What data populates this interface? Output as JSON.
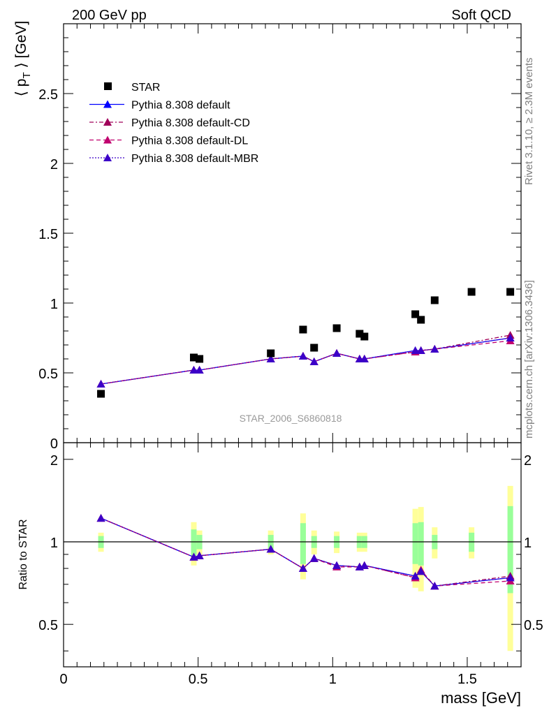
{
  "header": {
    "left": "200 GeV pp",
    "right": "Soft QCD"
  },
  "side_text": {
    "rivet": "Rivet 3.1.10, ≥ 2.3M events",
    "mcplots": "mcplots.cern.ch [arXiv:1306.3436]"
  },
  "watermark": "STAR_2006_S6860818",
  "colors": {
    "star": "#000000",
    "default": "#0000ff",
    "default_cd": "#a0005a",
    "default_dl": "#c0006e",
    "default_mbr": "#3c00c8",
    "band_inner": "#99ff99",
    "band_outer": "#ffff99"
  },
  "chart_data": [
    {
      "type": "scatter",
      "xlabel": "",
      "ylabel": "⟨ p_T ⟩ [GeV]",
      "xlim": [
        0,
        1.7
      ],
      "ylim": [
        0,
        3.0
      ],
      "yticks": [
        "0",
        "0.5",
        "1",
        "1.5",
        "2",
        "2.5"
      ],
      "legend": {
        "placement": "top-left",
        "entries": [
          "STAR",
          "Pythia 8.308 default",
          "Pythia 8.308 default-CD",
          "Pythia 8.308 default-DL",
          "Pythia 8.308 default-MBR"
        ]
      },
      "x": [
        0.139,
        0.484,
        0.505,
        0.77,
        0.89,
        0.931,
        1.015,
        1.1,
        1.118,
        1.307,
        1.328,
        1.379,
        1.516,
        1.66
      ],
      "series": [
        {
          "name": "STAR",
          "style": "square",
          "values": [
            0.35,
            0.61,
            0.6,
            0.64,
            0.81,
            0.68,
            0.82,
            0.78,
            0.76,
            0.92,
            0.88,
            1.02,
            1.08,
            1.08
          ]
        },
        {
          "name": "Pythia 8.308 default",
          "style": "solid",
          "values": [
            0.42,
            0.52,
            0.52,
            0.6,
            0.62,
            0.58,
            0.64,
            0.6,
            0.6,
            0.66,
            0.66,
            0.67,
            null,
            0.75
          ]
        },
        {
          "name": "Pythia 8.308 default-CD",
          "style": "dashdot",
          "values": [
            0.42,
            0.52,
            0.52,
            0.6,
            0.62,
            0.58,
            0.64,
            0.6,
            0.6,
            0.65,
            0.66,
            0.67,
            null,
            0.77
          ]
        },
        {
          "name": "Pythia 8.308 default-DL",
          "style": "dashed",
          "values": [
            0.42,
            0.52,
            0.52,
            0.6,
            0.62,
            0.58,
            0.64,
            0.6,
            0.6,
            0.65,
            0.66,
            0.67,
            null,
            0.73
          ]
        },
        {
          "name": "Pythia 8.308 default-MBR",
          "style": "dotted",
          "values": [
            0.42,
            0.52,
            0.52,
            0.6,
            0.62,
            0.58,
            0.64,
            0.6,
            0.6,
            0.66,
            0.66,
            0.67,
            null,
            0.75
          ]
        }
      ]
    },
    {
      "type": "line",
      "xlabel": "mass [GeV]",
      "ylabel": "Ratio to STAR",
      "xlim": [
        0,
        1.7
      ],
      "ylim": [
        0.35,
        2.3
      ],
      "log_y": true,
      "xticks": [
        "0",
        "0.5",
        "1",
        "1.5"
      ],
      "yticks": [
        "0.5",
        "1",
        "2"
      ],
      "reference_line": 1,
      "x": [
        0.139,
        0.484,
        0.505,
        0.77,
        0.89,
        0.931,
        1.015,
        1.1,
        1.118,
        1.307,
        1.328,
        1.379,
        1.516,
        1.66
      ],
      "bands": {
        "inner_halfwidth": [
          0.05,
          0.11,
          0.06,
          0.06,
          0.17,
          0.05,
          0.05,
          0.05,
          0.05,
          0.17,
          0.18,
          0.06,
          0.08,
          0.35
        ],
        "outer_halfwidth": [
          0.08,
          0.18,
          0.1,
          0.1,
          0.27,
          0.1,
          0.09,
          0.08,
          0.08,
          0.32,
          0.34,
          0.13,
          0.13,
          0.6
        ]
      },
      "series": [
        {
          "name": "Pythia 8.308 default",
          "values": [
            1.22,
            0.88,
            0.89,
            0.94,
            0.8,
            0.87,
            0.82,
            0.81,
            0.82,
            0.75,
            0.78,
            0.69,
            null,
            0.74
          ]
        },
        {
          "name": "Pythia 8.308 default-CD",
          "values": [
            1.22,
            0.88,
            0.89,
            0.94,
            0.8,
            0.87,
            0.82,
            0.81,
            0.82,
            0.74,
            0.78,
            0.69,
            null,
            0.75
          ]
        },
        {
          "name": "Pythia 8.308 default-DL",
          "values": [
            1.22,
            0.88,
            0.89,
            0.94,
            0.8,
            0.87,
            0.81,
            0.81,
            0.82,
            0.74,
            0.79,
            0.69,
            null,
            0.72
          ]
        },
        {
          "name": "Pythia 8.308 default-MBR",
          "values": [
            1.22,
            0.88,
            0.89,
            0.94,
            0.8,
            0.87,
            0.82,
            0.81,
            0.82,
            0.75,
            0.78,
            0.69,
            null,
            0.74
          ]
        }
      ]
    }
  ]
}
